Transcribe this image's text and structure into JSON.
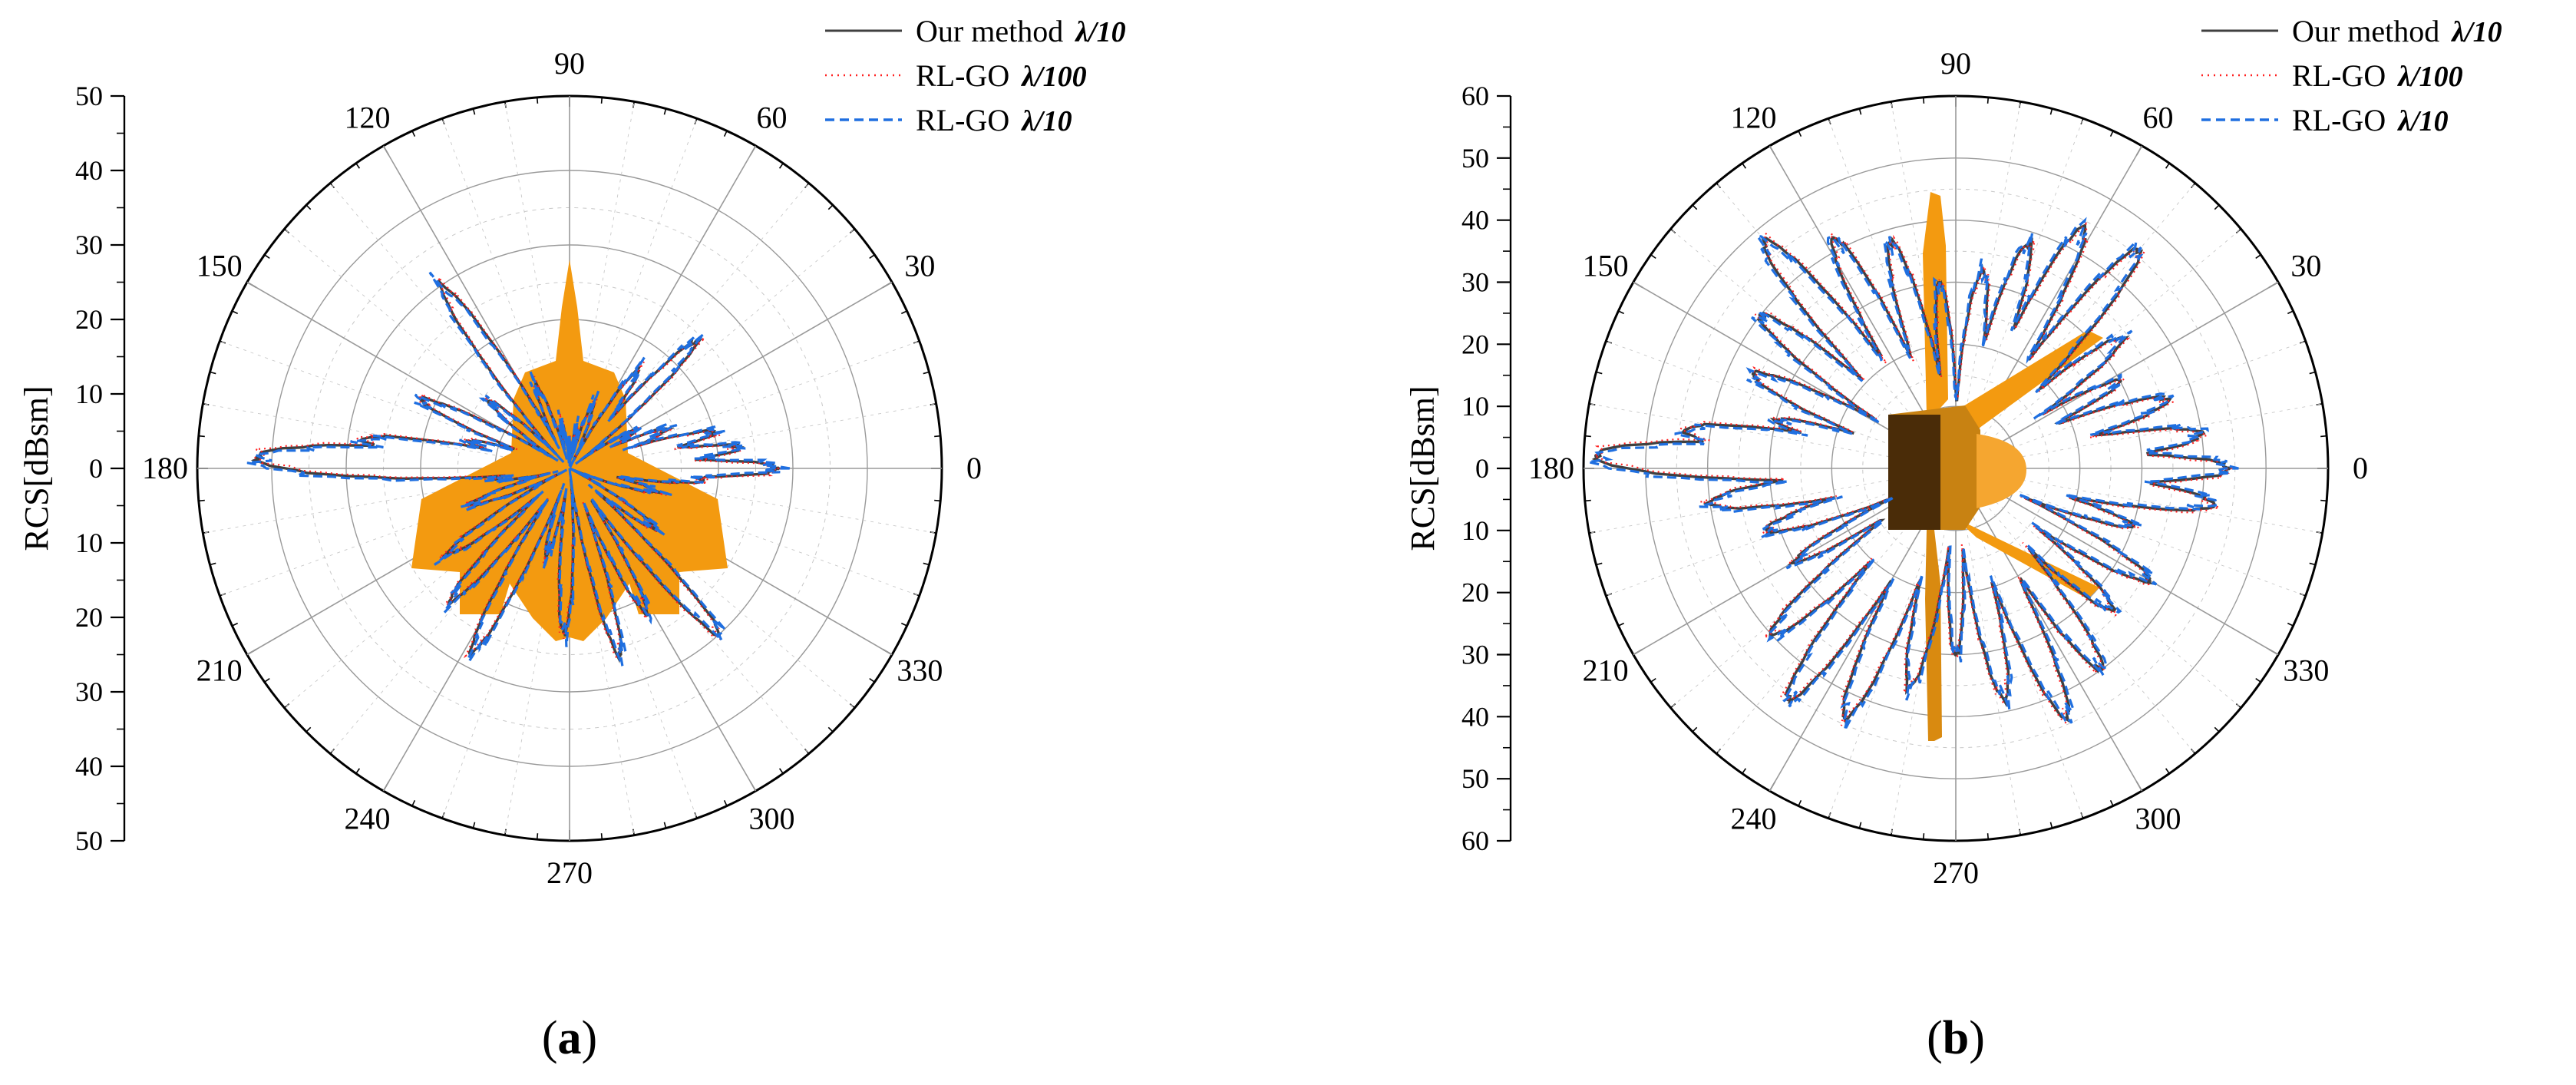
{
  "figure": {
    "panel_labels": [
      {
        "open": "(",
        "letter": "a",
        "close": ")"
      },
      {
        "open": "(",
        "letter": "b",
        "close": ")"
      }
    ]
  },
  "colors": {
    "our_method": "#404040",
    "rl_go_fine": "#ff2020",
    "rl_go_coarse": "#1f6fe0",
    "model": "#f39a10",
    "grid_major": "#9a9a9a",
    "grid_minor": "#c8c8c8"
  },
  "chart_data": [
    {
      "type": "polar-line",
      "panel": "a",
      "ylabel": "RCS[dBsm]",
      "r_range": [
        -50,
        50
      ],
      "r_tick_labels": [
        "50",
        "40",
        "30",
        "20",
        "10",
        "0",
        "10",
        "20",
        "30",
        "40",
        "50"
      ],
      "angle_tick_labels": [
        "0",
        "30",
        "60",
        "90",
        "120",
        "150",
        "180",
        "210",
        "240",
        "270",
        "300",
        "330"
      ],
      "legend": [
        {
          "label": "Our method",
          "suffix": "λ/10",
          "style": "solid"
        },
        {
          "label": "RL-GO",
          "suffix": "λ/100",
          "style": "dotted"
        },
        {
          "label": "RL-GO",
          "suffix": "λ/10",
          "style": "dashed"
        }
      ],
      "lobes": [
        {
          "angle": 0,
          "value": 28
        },
        {
          "angle": 7,
          "value": 23
        },
        {
          "angle": 14,
          "value": 20
        },
        {
          "angle": 22,
          "value": 14
        },
        {
          "angle": 30,
          "value": 10
        },
        {
          "angle": 45,
          "value": 24
        },
        {
          "angle": 55,
          "value": 16
        },
        {
          "angle": 70,
          "value": 9
        },
        {
          "angle": 80,
          "value": 5
        },
        {
          "angle": 90,
          "value": 3
        },
        {
          "angle": 100,
          "value": 6
        },
        {
          "angle": 112,
          "value": 12
        },
        {
          "angle": 125,
          "value": 30
        },
        {
          "angle": 140,
          "value": 14
        },
        {
          "angle": 155,
          "value": 22
        },
        {
          "angle": 165,
          "value": 14
        },
        {
          "angle": 172,
          "value": 28
        },
        {
          "angle": 178,
          "value": 42
        },
        {
          "angle": 188,
          "value": 10
        },
        {
          "angle": 200,
          "value": 14
        },
        {
          "angle": 215,
          "value": 20
        },
        {
          "angle": 228,
          "value": 24
        },
        {
          "angle": 242,
          "value": 28
        },
        {
          "angle": 255,
          "value": 12
        },
        {
          "angle": 268,
          "value": 22
        },
        {
          "angle": 285,
          "value": 26
        },
        {
          "angle": 298,
          "value": 22
        },
        {
          "angle": 312,
          "value": 30
        },
        {
          "angle": 325,
          "value": 14
        },
        {
          "angle": 345,
          "value": 12
        },
        {
          "angle": 355,
          "value": 18
        }
      ]
    },
    {
      "type": "polar-line",
      "panel": "b",
      "ylabel": "RCS[dBsm]",
      "r_range": [
        -60,
        60
      ],
      "r_tick_labels": [
        "60",
        "50",
        "40",
        "30",
        "20",
        "10",
        "0",
        "10",
        "20",
        "30",
        "40",
        "50",
        "60"
      ],
      "angle_tick_labels": [
        "0",
        "30",
        "60",
        "90",
        "120",
        "150",
        "180",
        "210",
        "240",
        "270",
        "300",
        "330"
      ],
      "legend": [
        {
          "label": "Our method",
          "suffix": "λ/10",
          "style": "solid"
        },
        {
          "label": "RL-GO",
          "suffix": "λ/100",
          "style": "dotted"
        },
        {
          "label": "RL-GO",
          "suffix": "λ/10",
          "style": "dashed"
        }
      ],
      "lobes": [
        {
          "angle": 0,
          "value": 44
        },
        {
          "angle": 8,
          "value": 40
        },
        {
          "angle": 18,
          "value": 36
        },
        {
          "angle": 28,
          "value": 30
        },
        {
          "angle": 38,
          "value": 34
        },
        {
          "angle": 50,
          "value": 46
        },
        {
          "angle": 62,
          "value": 44
        },
        {
          "angle": 72,
          "value": 38
        },
        {
          "angle": 82,
          "value": 32
        },
        {
          "angle": 95,
          "value": 30
        },
        {
          "angle": 106,
          "value": 38
        },
        {
          "angle": 118,
          "value": 42
        },
        {
          "angle": 130,
          "value": 48
        },
        {
          "angle": 142,
          "value": 40
        },
        {
          "angle": 155,
          "value": 36
        },
        {
          "angle": 165,
          "value": 30
        },
        {
          "angle": 172,
          "value": 44
        },
        {
          "angle": 178,
          "value": 58
        },
        {
          "angle": 188,
          "value": 40
        },
        {
          "angle": 198,
          "value": 32
        },
        {
          "angle": 210,
          "value": 30
        },
        {
          "angle": 222,
          "value": 40
        },
        {
          "angle": 234,
          "value": 46
        },
        {
          "angle": 246,
          "value": 44
        },
        {
          "angle": 258,
          "value": 36
        },
        {
          "angle": 270,
          "value": 30
        },
        {
          "angle": 282,
          "value": 38
        },
        {
          "angle": 294,
          "value": 44
        },
        {
          "angle": 306,
          "value": 40
        },
        {
          "angle": 318,
          "value": 34
        },
        {
          "angle": 330,
          "value": 36
        },
        {
          "angle": 342,
          "value": 30
        },
        {
          "angle": 352,
          "value": 42
        }
      ]
    }
  ]
}
